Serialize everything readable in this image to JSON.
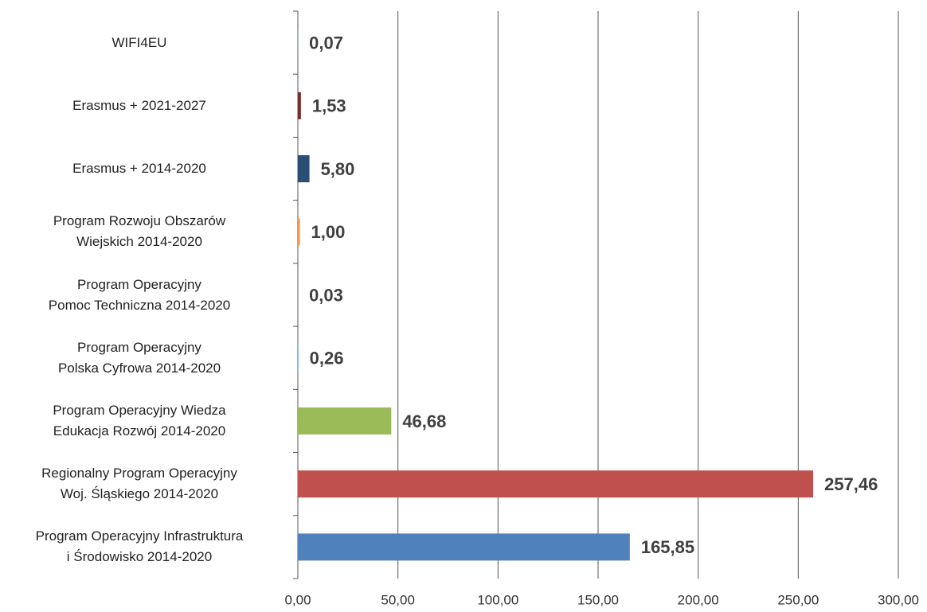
{
  "chart_data": {
    "type": "barh",
    "categories": [
      "WIFI4EU",
      "Erasmus + 2021-2027",
      "Erasmus + 2014-2020",
      "Program Rozwoju Obszarów\nWiejskich 2014-2020",
      "Program Operacyjny\nPomoc Techniczna 2014-2020",
      "Program Operacyjny\nPolska Cyfrowa 2014-2020",
      "Program Operacyjny Wiedza\nEdukacja Rozwój 2014-2020",
      "Regionalny Program Operacyjny\nWoj. Śląskiego  2014-2020",
      "Program Operacyjny Infrastruktura\ni Środowisko 2014-2020"
    ],
    "values": [
      0.07,
      1.53,
      5.8,
      1.0,
      0.03,
      0.26,
      46.68,
      257.46,
      165.85
    ],
    "value_labels": [
      "0,07",
      "1,53",
      "5,80",
      "1,00",
      "0,03",
      "0,26",
      "46,68",
      "257,46",
      "165,85"
    ],
    "colors": [
      "#4bacc6",
      "#772c2a",
      "#2c4d75",
      "#f79646",
      "#8064a2",
      "#4bacc6",
      "#9bbb59",
      "#c0504d",
      "#4f81bd"
    ],
    "xlim": [
      0,
      300
    ],
    "xticks": [
      {
        "value": 0,
        "label": "0,00"
      },
      {
        "value": 50,
        "label": "50,00"
      },
      {
        "value": 100,
        "label": "100,00"
      },
      {
        "value": 150,
        "label": "150,00"
      },
      {
        "value": 200,
        "label": "200,00"
      },
      {
        "value": 250,
        "label": "250,00"
      },
      {
        "value": 300,
        "label": "300,00"
      }
    ],
    "grid": true
  }
}
